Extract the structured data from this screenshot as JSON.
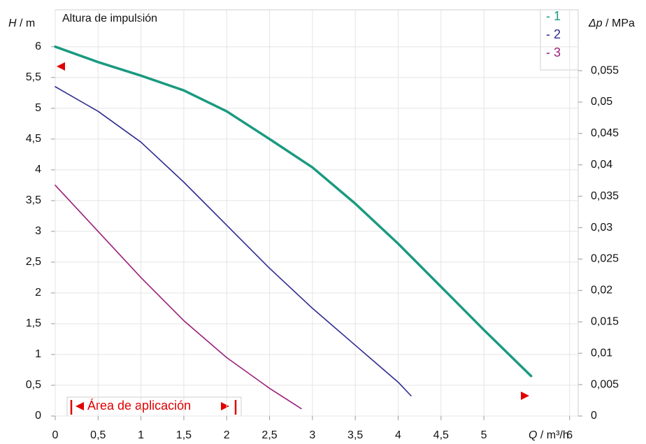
{
  "chart_data": {
    "type": "line",
    "title": "Altura de impulsión",
    "ylabel": {
      "symbol": "H",
      "unit": "/ m"
    },
    "y2label": {
      "symbol": "Δp",
      "unit": "/ MPa"
    },
    "xlabel": {
      "symbol": "Q",
      "unit": "/ m³/h"
    },
    "annotation": "Área de aplicación",
    "xlim": [
      0,
      6.1
    ],
    "ylim": [
      0,
      6.6
    ],
    "y2lim": [
      0,
      0.0647
    ],
    "xticks": [
      0,
      {
        "value": 0.5,
        "label": "0,5"
      },
      1,
      {
        "value": 1.5,
        "label": "1,5"
      },
      2,
      {
        "value": 2.5,
        "label": "2,5"
      },
      3,
      {
        "value": 3.5,
        "label": "3,5"
      },
      4,
      {
        "value": 4.5,
        "label": "4,5"
      },
      5,
      6
    ],
    "yticks": [
      0,
      {
        "value": 0.5,
        "label": "0,5"
      },
      1,
      {
        "value": 1.5,
        "label": "1,5"
      },
      2,
      {
        "value": 2.5,
        "label": "2,5"
      },
      3,
      {
        "value": 3.5,
        "label": "3,5"
      },
      4,
      {
        "value": 4.5,
        "label": "4,5"
      },
      5,
      {
        "value": 5.5,
        "label": "5,5"
      },
      6
    ],
    "y2ticks": [
      0,
      {
        "value": 0.005,
        "label": "0,005"
      },
      {
        "value": 0.01,
        "label": "0,01"
      },
      {
        "value": 0.015,
        "label": "0,015"
      },
      {
        "value": 0.02,
        "label": "0,02"
      },
      {
        "value": 0.025,
        "label": "0,025"
      },
      {
        "value": 0.03,
        "label": "0,03"
      },
      {
        "value": 0.035,
        "label": "0,035"
      },
      {
        "value": 0.04,
        "label": "0,04"
      },
      {
        "value": 0.045,
        "label": "0,045"
      },
      {
        "value": 0.05,
        "label": "0,05"
      },
      {
        "value": 0.055,
        "label": "0,055"
      }
    ],
    "grid": true,
    "series": [
      {
        "name": "- 1",
        "color": "#1a9a80",
        "width": 3.5,
        "x": [
          0,
          0.5,
          1,
          1.5,
          2,
          2.5,
          3,
          3.5,
          4,
          4.5,
          5,
          5.55
        ],
        "values": [
          6.0,
          5.75,
          5.53,
          5.29,
          4.95,
          4.5,
          4.04,
          3.45,
          2.8,
          2.1,
          1.4,
          0.65
        ]
      },
      {
        "name": "- 2",
        "color": "#2e2a8f",
        "width": 1.6,
        "x": [
          0,
          0.5,
          1,
          1.5,
          2,
          2.5,
          3,
          3.5,
          4,
          4.15
        ],
        "values": [
          5.35,
          4.95,
          4.45,
          3.8,
          3.1,
          2.4,
          1.75,
          1.15,
          0.55,
          0.33
        ]
      },
      {
        "name": "- 3",
        "color": "#9a1f7a",
        "width": 1.6,
        "x": [
          0,
          0.5,
          1,
          1.5,
          2,
          2.5,
          2.87
        ],
        "values": [
          3.75,
          3.0,
          2.25,
          1.55,
          0.95,
          0.45,
          0.12
        ]
      }
    ]
  }
}
